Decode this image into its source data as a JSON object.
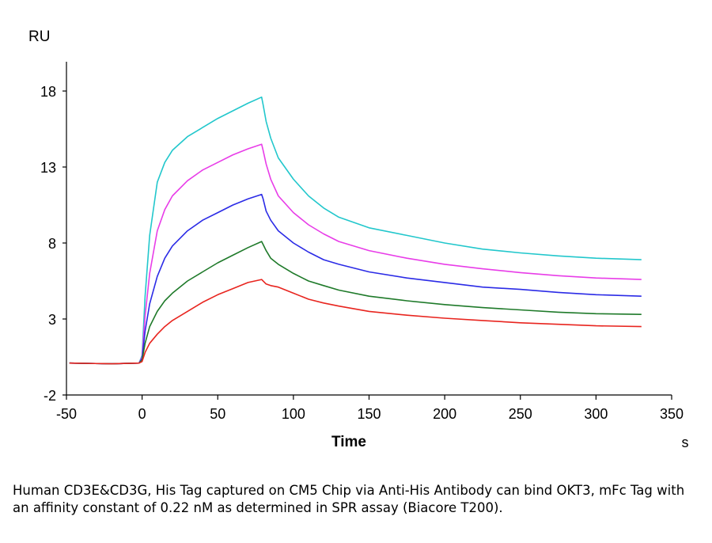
{
  "chart_data": {
    "type": "line",
    "ylabel": "RU",
    "xlabel": "Time",
    "xunit": "s",
    "xlim": [
      -50,
      350
    ],
    "ylim": [
      -2,
      20
    ],
    "xticks": [
      -50,
      0,
      50,
      100,
      150,
      200,
      250,
      300,
      350
    ],
    "yticks": [
      -2,
      3,
      8,
      13,
      18
    ],
    "grid": false,
    "legend": "none",
    "series": [
      {
        "color": "#22c7cc",
        "values": [
          [
            -48,
            0.1
          ],
          [
            -20,
            0.05
          ],
          [
            -2,
            0.1
          ],
          [
            0,
            0.6
          ],
          [
            2,
            4.5
          ],
          [
            5,
            8.5
          ],
          [
            10,
            12
          ],
          [
            15,
            13.3
          ],
          [
            20,
            14.1
          ],
          [
            30,
            15
          ],
          [
            40,
            15.6
          ],
          [
            50,
            16.2
          ],
          [
            60,
            16.7
          ],
          [
            70,
            17.2
          ],
          [
            79,
            17.6
          ],
          [
            80,
            17.1
          ],
          [
            82,
            16
          ],
          [
            85,
            14.9
          ],
          [
            90,
            13.6
          ],
          [
            100,
            12.2
          ],
          [
            110,
            11.1
          ],
          [
            120,
            10.3
          ],
          [
            130,
            9.7
          ],
          [
            150,
            9
          ],
          [
            175,
            8.5
          ],
          [
            200,
            8
          ],
          [
            225,
            7.6
          ],
          [
            250,
            7.35
          ],
          [
            275,
            7.15
          ],
          [
            300,
            7
          ],
          [
            330,
            6.9
          ]
        ]
      },
      {
        "color": "#e83de8",
        "values": [
          [
            -48,
            0.1
          ],
          [
            -20,
            0.05
          ],
          [
            -2,
            0.1
          ],
          [
            0,
            0.5
          ],
          [
            2,
            3.2
          ],
          [
            5,
            6
          ],
          [
            10,
            8.8
          ],
          [
            15,
            10.2
          ],
          [
            20,
            11.1
          ],
          [
            30,
            12.1
          ],
          [
            40,
            12.8
          ],
          [
            50,
            13.3
          ],
          [
            60,
            13.8
          ],
          [
            70,
            14.2
          ],
          [
            79,
            14.5
          ],
          [
            80,
            14.1
          ],
          [
            82,
            13.2
          ],
          [
            85,
            12.2
          ],
          [
            90,
            11.1
          ],
          [
            100,
            10
          ],
          [
            110,
            9.2
          ],
          [
            120,
            8.6
          ],
          [
            130,
            8.1
          ],
          [
            150,
            7.5
          ],
          [
            175,
            7
          ],
          [
            200,
            6.6
          ],
          [
            225,
            6.3
          ],
          [
            250,
            6.05
          ],
          [
            275,
            5.85
          ],
          [
            300,
            5.7
          ],
          [
            330,
            5.6
          ]
        ]
      },
      {
        "color": "#2b2be6",
        "values": [
          [
            -48,
            0.1
          ],
          [
            -20,
            0.05
          ],
          [
            -2,
            0.1
          ],
          [
            0,
            0.4
          ],
          [
            2,
            2.2
          ],
          [
            5,
            4
          ],
          [
            10,
            5.8
          ],
          [
            15,
            7
          ],
          [
            20,
            7.8
          ],
          [
            30,
            8.8
          ],
          [
            40,
            9.5
          ],
          [
            50,
            10
          ],
          [
            60,
            10.5
          ],
          [
            70,
            10.9
          ],
          [
            79,
            11.2
          ],
          [
            80,
            10.9
          ],
          [
            82,
            10.1
          ],
          [
            85,
            9.5
          ],
          [
            90,
            8.8
          ],
          [
            100,
            8
          ],
          [
            110,
            7.4
          ],
          [
            120,
            6.9
          ],
          [
            130,
            6.6
          ],
          [
            150,
            6.1
          ],
          [
            175,
            5.7
          ],
          [
            200,
            5.4
          ],
          [
            225,
            5.1
          ],
          [
            250,
            4.95
          ],
          [
            275,
            4.75
          ],
          [
            300,
            4.6
          ],
          [
            330,
            4.5
          ]
        ]
      },
      {
        "color": "#1f7a2a",
        "values": [
          [
            -48,
            0.1
          ],
          [
            -20,
            0.05
          ],
          [
            -2,
            0.1
          ],
          [
            0,
            0.3
          ],
          [
            2,
            1.4
          ],
          [
            5,
            2.5
          ],
          [
            10,
            3.5
          ],
          [
            15,
            4.2
          ],
          [
            20,
            4.7
          ],
          [
            30,
            5.5
          ],
          [
            40,
            6.1
          ],
          [
            50,
            6.7
          ],
          [
            60,
            7.2
          ],
          [
            70,
            7.7
          ],
          [
            79,
            8.1
          ],
          [
            80,
            7.9
          ],
          [
            82,
            7.5
          ],
          [
            85,
            7
          ],
          [
            90,
            6.6
          ],
          [
            100,
            6
          ],
          [
            110,
            5.5
          ],
          [
            120,
            5.2
          ],
          [
            130,
            4.9
          ],
          [
            150,
            4.5
          ],
          [
            175,
            4.2
          ],
          [
            200,
            3.95
          ],
          [
            225,
            3.75
          ],
          [
            250,
            3.6
          ],
          [
            275,
            3.45
          ],
          [
            300,
            3.35
          ],
          [
            330,
            3.3
          ]
        ]
      },
      {
        "color": "#e8251f",
        "values": [
          [
            -48,
            0.1
          ],
          [
            -20,
            0.05
          ],
          [
            -2,
            0.1
          ],
          [
            0,
            0.2
          ],
          [
            2,
            0.8
          ],
          [
            5,
            1.4
          ],
          [
            10,
            2
          ],
          [
            15,
            2.5
          ],
          [
            20,
            2.9
          ],
          [
            30,
            3.5
          ],
          [
            40,
            4.1
          ],
          [
            50,
            4.6
          ],
          [
            60,
            5
          ],
          [
            70,
            5.4
          ],
          [
            79,
            5.6
          ],
          [
            82,
            5.3
          ],
          [
            85,
            5.2
          ],
          [
            90,
            5.1
          ],
          [
            100,
            4.7
          ],
          [
            110,
            4.3
          ],
          [
            120,
            4.05
          ],
          [
            130,
            3.85
          ],
          [
            150,
            3.5
          ],
          [
            175,
            3.25
          ],
          [
            200,
            3.05
          ],
          [
            225,
            2.9
          ],
          [
            250,
            2.75
          ],
          [
            275,
            2.65
          ],
          [
            300,
            2.55
          ],
          [
            330,
            2.5
          ]
        ]
      }
    ]
  },
  "caption": "Human CD3E&CD3G, His Tag captured on CM5 Chip via Anti-His Antibody can bind OKT3, mFc Tag with an affinity constant of 0.22 nM as determined in SPR assay (Biacore T200)."
}
